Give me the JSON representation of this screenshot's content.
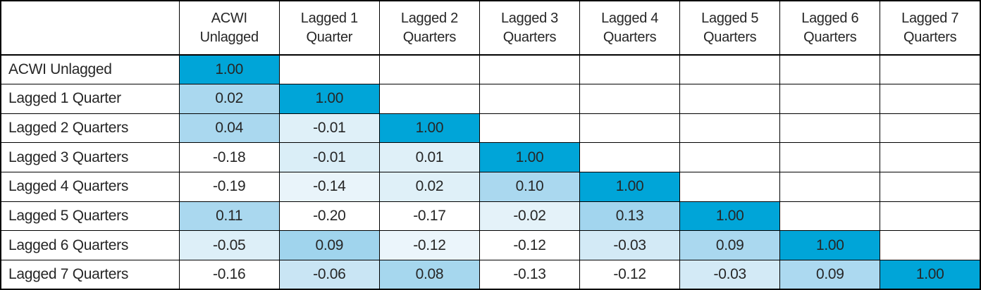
{
  "table": {
    "corner_label": "",
    "columns": [
      "ACWI Unlagged",
      "Lagged 1 Quarter",
      "Lagged 2 Quarters",
      "Lagged 3 Quarters",
      "Lagged 4 Quarters",
      "Lagged 5 Quarters",
      "Lagged 6 Quarters",
      "Lagged 7 Quarters"
    ],
    "rows": [
      {
        "label": "ACWI Unlagged",
        "cells": [
          {
            "value": "1.00",
            "color": "#00A5D8"
          }
        ]
      },
      {
        "label": "Lagged 1 Quarter",
        "cells": [
          {
            "value": "0.02",
            "color": "#AAD8EF"
          },
          {
            "value": "1.00",
            "color": "#00A5D8"
          }
        ]
      },
      {
        "label": "Lagged 2 Quarters",
        "cells": [
          {
            "value": "0.04",
            "color": "#AAD8EF"
          },
          {
            "value": "-0.01",
            "color": "#DFF0F8"
          },
          {
            "value": "1.00",
            "color": "#00A5D8"
          }
        ]
      },
      {
        "label": "Lagged 3 Quarters",
        "cells": [
          {
            "value": "-0.18",
            "color": "#FFFFFF"
          },
          {
            "value": "-0.01",
            "color": "#DAEEF7"
          },
          {
            "value": "0.01",
            "color": "#DFF0F8"
          },
          {
            "value": "1.00",
            "color": "#00A5D8"
          }
        ]
      },
      {
        "label": "Lagged 4 Quarters",
        "cells": [
          {
            "value": "-0.19",
            "color": "#FFFFFF"
          },
          {
            "value": "-0.14",
            "color": "#E9F4FA"
          },
          {
            "value": "0.02",
            "color": "#DFF0F8"
          },
          {
            "value": "0.10",
            "color": "#AAD8EF"
          },
          {
            "value": "1.00",
            "color": "#00A5D8"
          }
        ]
      },
      {
        "label": "Lagged 5 Quarters",
        "cells": [
          {
            "value": "0.11",
            "color": "#AAD8EF"
          },
          {
            "value": "-0.20",
            "color": "#FFFFFF"
          },
          {
            "value": "-0.17",
            "color": "#FFFFFF"
          },
          {
            "value": "-0.02",
            "color": "#E4F2F9"
          },
          {
            "value": "0.13",
            "color": "#A2D5EE"
          },
          {
            "value": "1.00",
            "color": "#00A5D8"
          }
        ]
      },
      {
        "label": "Lagged 6 Quarters",
        "cells": [
          {
            "value": "-0.05",
            "color": "#DDEFF8"
          },
          {
            "value": "0.09",
            "color": "#A0D4ED"
          },
          {
            "value": "-0.12",
            "color": "#EBF5FB"
          },
          {
            "value": "-0.12",
            "color": "#FFFFFF"
          },
          {
            "value": "-0.03",
            "color": "#D3EAF6"
          },
          {
            "value": "0.09",
            "color": "#AAD8EF"
          },
          {
            "value": "1.00",
            "color": "#00A5D8"
          }
        ]
      },
      {
        "label": "Lagged 7 Quarters",
        "cells": [
          {
            "value": "-0.16",
            "color": "#FFFFFF"
          },
          {
            "value": "-0.06",
            "color": "#C9E5F4"
          },
          {
            "value": "0.08",
            "color": "#A6D7EE"
          },
          {
            "value": "-0.13",
            "color": "#FFFFFF"
          },
          {
            "value": "-0.12",
            "color": "#FFFFFF"
          },
          {
            "value": "-0.03",
            "color": "#D3EAF6"
          },
          {
            "value": "0.09",
            "color": "#ACD9F0"
          },
          {
            "value": "1.00",
            "color": "#00A5D8"
          }
        ]
      }
    ]
  },
  "colors": {
    "diagonal": "#00A5D8",
    "grid_border": "#000000",
    "text": "#262626",
    "empty_cell": "#FFFFFF"
  },
  "chart_data": {
    "type": "heatmap",
    "title": "",
    "categories": [
      "ACWI Unlagged",
      "Lagged 1 Quarter",
      "Lagged 2 Quarters",
      "Lagged 3 Quarters",
      "Lagged 4 Quarters",
      "Lagged 5 Quarters",
      "Lagged 6 Quarters",
      "Lagged 7 Quarters"
    ],
    "rows": [
      "ACWI Unlagged",
      "Lagged 1 Quarter",
      "Lagged 2 Quarters",
      "Lagged 3 Quarters",
      "Lagged 4 Quarters",
      "Lagged 5 Quarters",
      "Lagged 6 Quarters",
      "Lagged 7 Quarters"
    ],
    "matrix": [
      [
        1.0
      ],
      [
        0.02,
        1.0
      ],
      [
        0.04,
        -0.01,
        1.0
      ],
      [
        -0.18,
        -0.01,
        0.01,
        1.0
      ],
      [
        -0.19,
        -0.14,
        0.02,
        0.1,
        1.0
      ],
      [
        0.11,
        -0.2,
        -0.17,
        -0.02,
        0.13,
        1.0
      ],
      [
        -0.05,
        0.09,
        -0.12,
        -0.12,
        -0.03,
        0.09,
        1.0
      ],
      [
        -0.16,
        -0.06,
        0.08,
        -0.13,
        -0.12,
        -0.03,
        0.09,
        1.0
      ]
    ],
    "layout": "lower-triangular correlation matrix, diagonal highlighted cyan, gridlines on, no legend"
  }
}
